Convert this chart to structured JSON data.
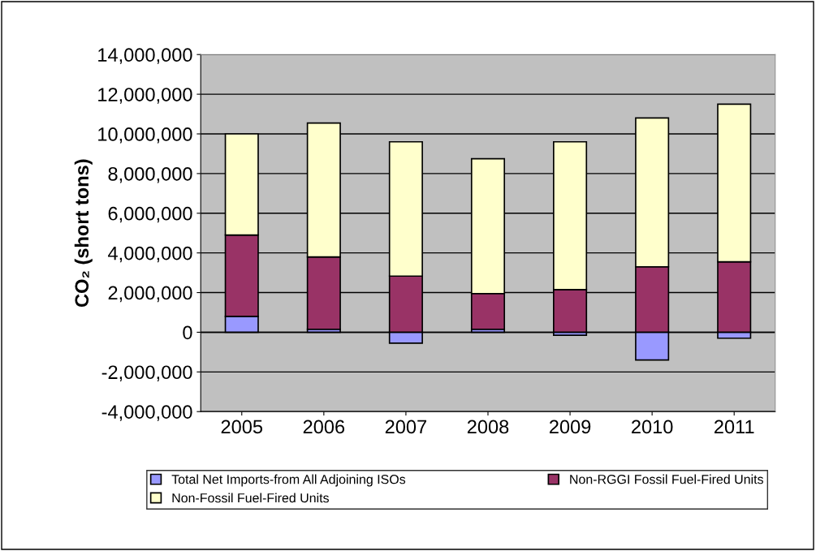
{
  "chart_data": {
    "type": "bar",
    "stacked": true,
    "ylabel": "CO₂ (short tons)",
    "categories": [
      "2005",
      "2006",
      "2007",
      "2008",
      "2009",
      "2010",
      "2011"
    ],
    "series": [
      {
        "name": "Total Net Imports-from All Adjoining ISOs",
        "color": "#9999ff",
        "values": [
          800000,
          150000,
          -550000,
          150000,
          -150000,
          -1400000,
          -300000
        ]
      },
      {
        "name": "Non-RGGI Fossil Fuel-Fired Units",
        "color": "#993366",
        "values": [
          4100000,
          3650000,
          2830000,
          1800000,
          2150000,
          3300000,
          3550000
        ]
      },
      {
        "name": "Non-Fossil Fuel-Fired Units",
        "color": "#ffffcc",
        "values": [
          5100000,
          6750000,
          6770000,
          6800000,
          7450000,
          7500000,
          7950000
        ]
      }
    ],
    "ylim": [
      -4000000,
      14000000
    ],
    "yticks": [
      {
        "value": -4000000,
        "label": "-4,000,000"
      },
      {
        "value": -2000000,
        "label": "-2,000,000"
      },
      0,
      {
        "value": 2000000,
        "label": "2,000,000"
      },
      {
        "value": 4000000,
        "label": "4,000,000"
      },
      {
        "value": 6000000,
        "label": "6,000,000"
      },
      {
        "value": 8000000,
        "label": "8,000,000"
      },
      {
        "value": 10000000,
        "label": "10,000,000"
      },
      {
        "value": 12000000,
        "label": "12,000,000"
      },
      {
        "value": 14000000,
        "label": "14,000,000"
      }
    ],
    "grid": "y",
    "legend": "bottom"
  }
}
